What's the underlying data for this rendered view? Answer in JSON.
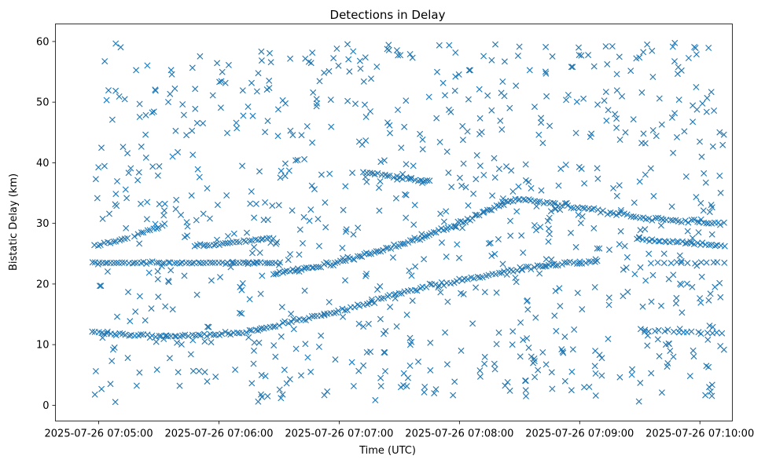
{
  "chart_data": {
    "type": "scatter",
    "title": "Detections in Delay",
    "xlabel": "Time (UTC)",
    "ylabel": "Bistatic Delay (km)",
    "marker": "x",
    "color": "#1f77b4",
    "x_unit": "minutes after 2025-07-26 07:05:00 UTC",
    "xlim": [
      -0.36,
      5.27
    ],
    "ylim": [
      -2.6,
      62.9
    ],
    "x_ticks": [
      {
        "value": 0,
        "label": "2025-07-26 07:05:00"
      },
      {
        "value": 1,
        "label": "2025-07-26 07:06:00"
      },
      {
        "value": 2,
        "label": "2025-07-26 07:07:00"
      },
      {
        "value": 3,
        "label": "2025-07-26 07:08:00"
      },
      {
        "value": 4,
        "label": "2025-07-26 07:09:00"
      },
      {
        "value": 5,
        "label": "2025-07-26 07:10:00"
      }
    ],
    "y_ticks": [
      {
        "value": 0,
        "label": "0"
      },
      {
        "value": 10,
        "label": "10"
      },
      {
        "value": 20,
        "label": "20"
      },
      {
        "value": 30,
        "label": "30"
      },
      {
        "value": 40,
        "label": "40"
      },
      {
        "value": 50,
        "label": "50"
      },
      {
        "value": 60,
        "label": "60"
      }
    ],
    "grid": false,
    "tracks_note": "Dense detection tracks (clutter ridges) plus uniformly scattered false alarms between 0 and 60 km; track points are approximated from the visible curves.",
    "tracks": [
      {
        "name": "track-a-rising",
        "x_start": -0.05,
        "x_end": 4.15,
        "step": 0.025,
        "jitter": 0.25,
        "knots_x": [
          -0.05,
          0.3,
          0.7,
          1.2,
          2.0,
          2.5,
          3.0,
          3.5,
          3.9,
          4.15
        ],
        "knots_y": [
          12.0,
          11.5,
          11.4,
          12.0,
          15.5,
          18.5,
          20.6,
          22.5,
          23.5,
          23.6
        ]
      },
      {
        "name": "track-b-flat-23",
        "x_start": -0.05,
        "x_end": 1.5,
        "step": 0.025,
        "jitter": 0.12,
        "knots_x": [
          -0.05,
          1.5
        ],
        "knots_y": [
          23.5,
          23.5
        ]
      },
      {
        "name": "track-c-rising",
        "x_start": 1.45,
        "x_end": 3.5,
        "step": 0.02,
        "jitter": 0.3,
        "knots_x": [
          1.45,
          2.0,
          2.5,
          3.0,
          3.3,
          3.5
        ],
        "knots_y": [
          21.6,
          23.6,
          26.4,
          29.9,
          32.8,
          34.2
        ]
      },
      {
        "name": "track-d-descending",
        "x_start": 3.5,
        "x_end": 5.2,
        "step": 0.025,
        "jitter": 0.25,
        "knots_x": [
          3.5,
          4.0,
          4.5,
          5.2
        ],
        "knots_y": [
          34.0,
          32.6,
          31.0,
          29.9
        ]
      },
      {
        "name": "track-e-upper-right",
        "x_start": 4.5,
        "x_end": 5.2,
        "step": 0.025,
        "jitter": 0.2,
        "knots_x": [
          4.5,
          5.2
        ],
        "knots_y": [
          27.4,
          26.2
        ]
      },
      {
        "name": "track-f-mid",
        "x_start": 0.8,
        "x_end": 1.45,
        "step": 0.025,
        "jitter": 0.2,
        "knots_x": [
          0.8,
          1.45
        ],
        "knots_y": [
          26.2,
          27.5
        ]
      },
      {
        "name": "track-g-short",
        "x_start": -0.03,
        "x_end": 0.25,
        "step": 0.025,
        "jitter": 0.2,
        "knots_x": [
          -0.03,
          0.25
        ],
        "knots_y": [
          26.3,
          27.6
        ]
      },
      {
        "name": "track-h-short",
        "x_start": 0.3,
        "x_end": 0.55,
        "step": 0.025,
        "jitter": 0.2,
        "knots_x": [
          0.3,
          0.55
        ],
        "knots_y": [
          28.0,
          29.8
        ]
      },
      {
        "name": "track-i-high",
        "x_start": 2.2,
        "x_end": 2.75,
        "step": 0.025,
        "jitter": 0.2,
        "knots_x": [
          2.2,
          2.75
        ],
        "knots_y": [
          38.5,
          36.9
        ]
      },
      {
        "name": "track-j-flat-23-right",
        "x_start": 4.6,
        "x_end": 5.2,
        "step": 0.05,
        "jitter": 0.12,
        "knots_x": [
          4.6,
          5.2
        ],
        "knots_y": [
          23.5,
          23.5
        ]
      },
      {
        "name": "track-k-flat-12-right",
        "x_start": 4.5,
        "x_end": 5.2,
        "step": 0.04,
        "jitter": 0.2,
        "knots_x": [
          4.5,
          5.2
        ],
        "knots_y": [
          12.3,
          11.9
        ]
      }
    ],
    "clutter": {
      "count": 820,
      "x_range": [
        -0.05,
        5.2
      ],
      "y_range": [
        0.5,
        59.8
      ],
      "seed": 7
    }
  }
}
